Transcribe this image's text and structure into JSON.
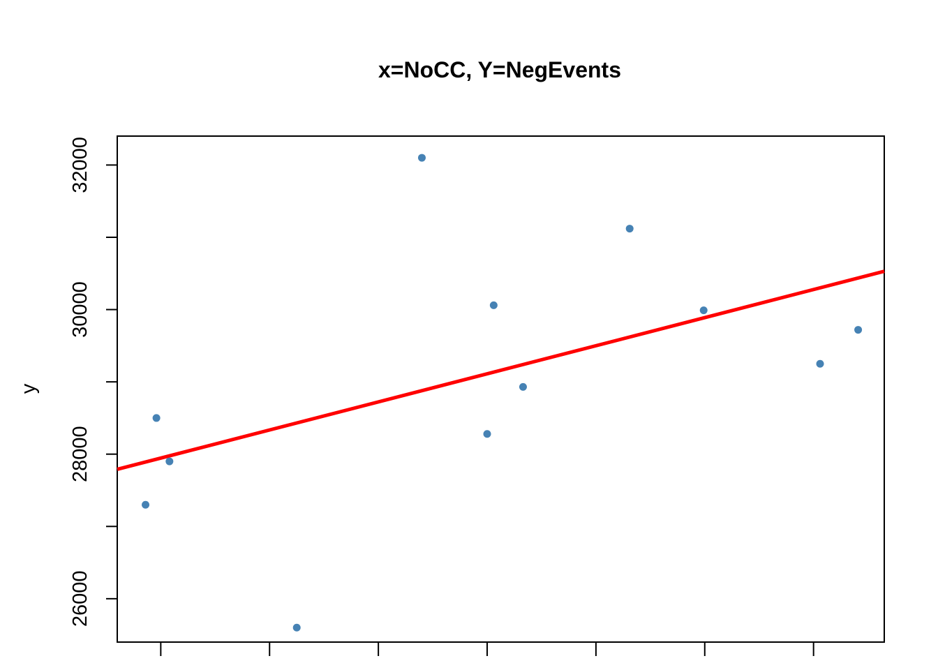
{
  "chart_data": {
    "type": "scatter",
    "title": "x=NoCC, Y=NegEvents",
    "xlabel": "",
    "ylabel": "y",
    "ylim": [
      25400,
      32400
    ],
    "xlim": [
      0.6,
      7.65
    ],
    "x_ticks": [
      1,
      2,
      3,
      4,
      5,
      6,
      7
    ],
    "y_ticks": [
      26000,
      27000,
      28000,
      29000,
      30000,
      31000,
      32000
    ],
    "y_tick_labels": [
      "26000",
      "28000",
      "30000",
      "32000"
    ],
    "points": [
      {
        "x": 0.86,
        "y": 27300
      },
      {
        "x": 0.96,
        "y": 28500
      },
      {
        "x": 1.08,
        "y": 27900
      },
      {
        "x": 2.25,
        "y": 25600
      },
      {
        "x": 3.4,
        "y": 32100
      },
      {
        "x": 4.0,
        "y": 28280
      },
      {
        "x": 4.06,
        "y": 30060
      },
      {
        "x": 4.33,
        "y": 28930
      },
      {
        "x": 5.31,
        "y": 31120
      },
      {
        "x": 5.99,
        "y": 29990
      },
      {
        "x": 7.06,
        "y": 29250
      },
      {
        "x": 7.41,
        "y": 29720
      }
    ],
    "fit_line": {
      "x1": 0.6,
      "y1": 27790,
      "x2": 7.65,
      "y2": 30530
    },
    "point_color": "#4682B4",
    "line_color": "#FF0000",
    "grid": false,
    "legend": "none"
  }
}
